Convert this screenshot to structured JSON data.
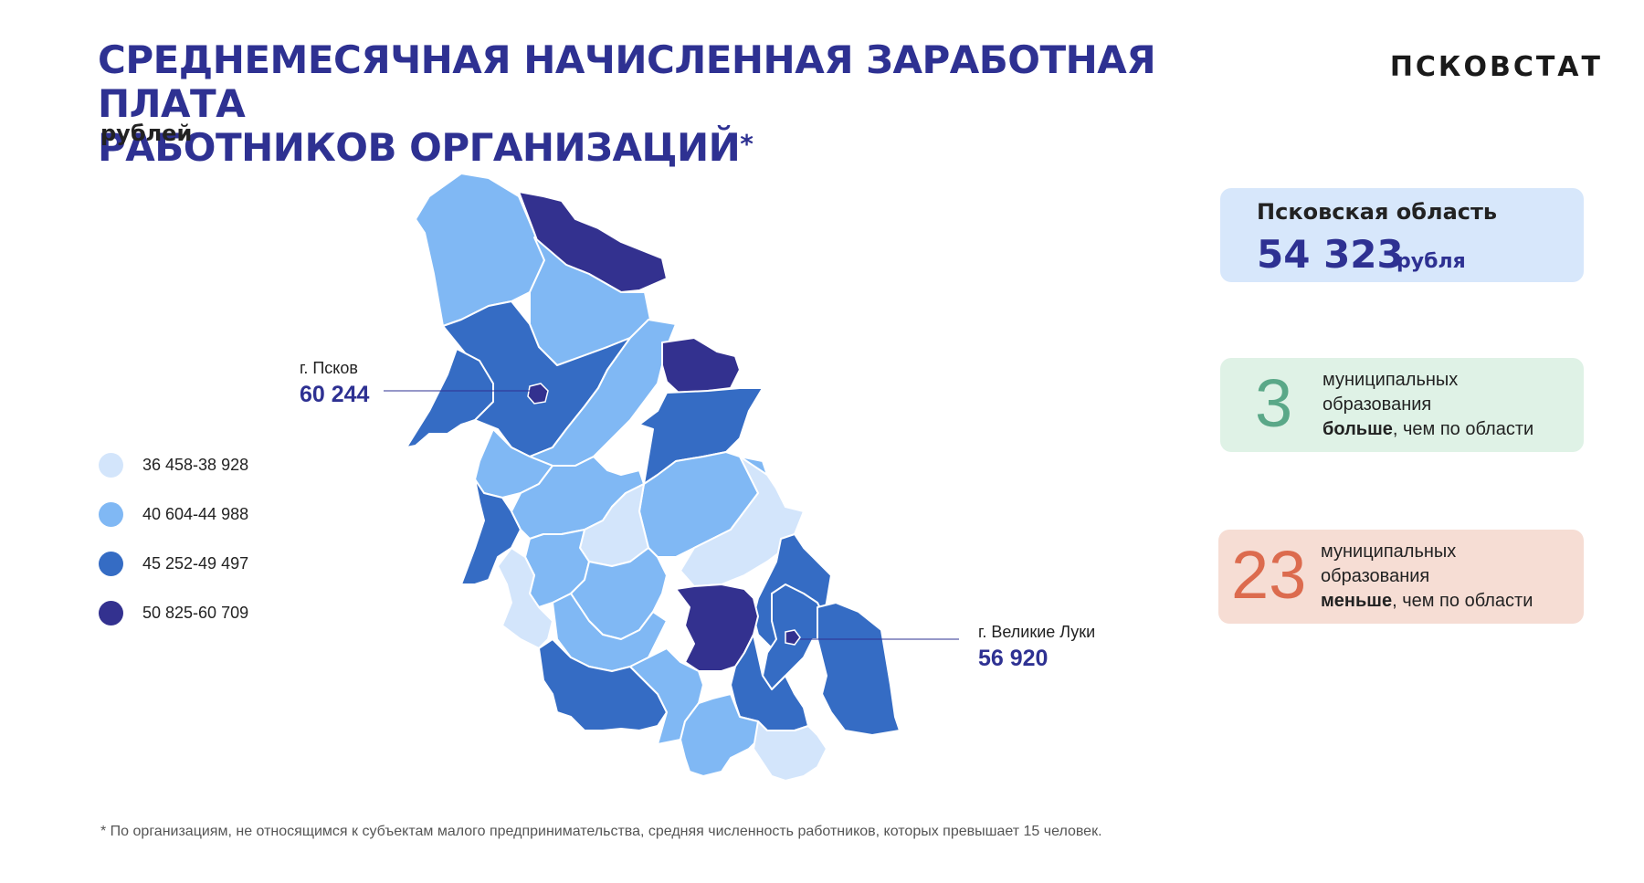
{
  "header": {
    "title_line1": "СРЕДНЕМЕСЯЧНАЯ НАЧИСЛЕННАЯ ЗАРАБОТНАЯ ПЛАТА",
    "title_line2": "РАБОТНИКОВ ОРГАНИЗАЦИЙ",
    "title_mark": "*",
    "unit": "рублей",
    "brand": "ПСКОВСТАТ"
  },
  "legend": {
    "items": [
      {
        "label": "36 458-38 928",
        "color": "#d3e5fb"
      },
      {
        "label": "40 604-44 988",
        "color": "#80b8f4"
      },
      {
        "label": "45 252-49 497",
        "color": "#356cc4"
      },
      {
        "label": "50 825-60 709",
        "color": "#33318f"
      }
    ]
  },
  "callouts": {
    "pskov": {
      "name": "г. Псков",
      "value": "60 244"
    },
    "velikie_luki": {
      "name": "г. Великие Луки",
      "value": "56 920"
    }
  },
  "region_card": {
    "name": "Псковская область",
    "value": "54 323",
    "currency": "рубля"
  },
  "more_card": {
    "count": "3",
    "line1": "муниципальных",
    "line2": "образования",
    "emph": "больше",
    "rest": ", чем по области",
    "color": "#5aa888"
  },
  "less_card": {
    "count": "23",
    "line1": "муниципальных",
    "line2": "образования",
    "emph": "меньше",
    "rest": ", чем по области",
    "color": "#dc6b4e"
  },
  "footnote": "* По организациям, не относящимся к субъектам малого предпринимательства, средняя численность работников,  которых превышает 15 человек."
}
